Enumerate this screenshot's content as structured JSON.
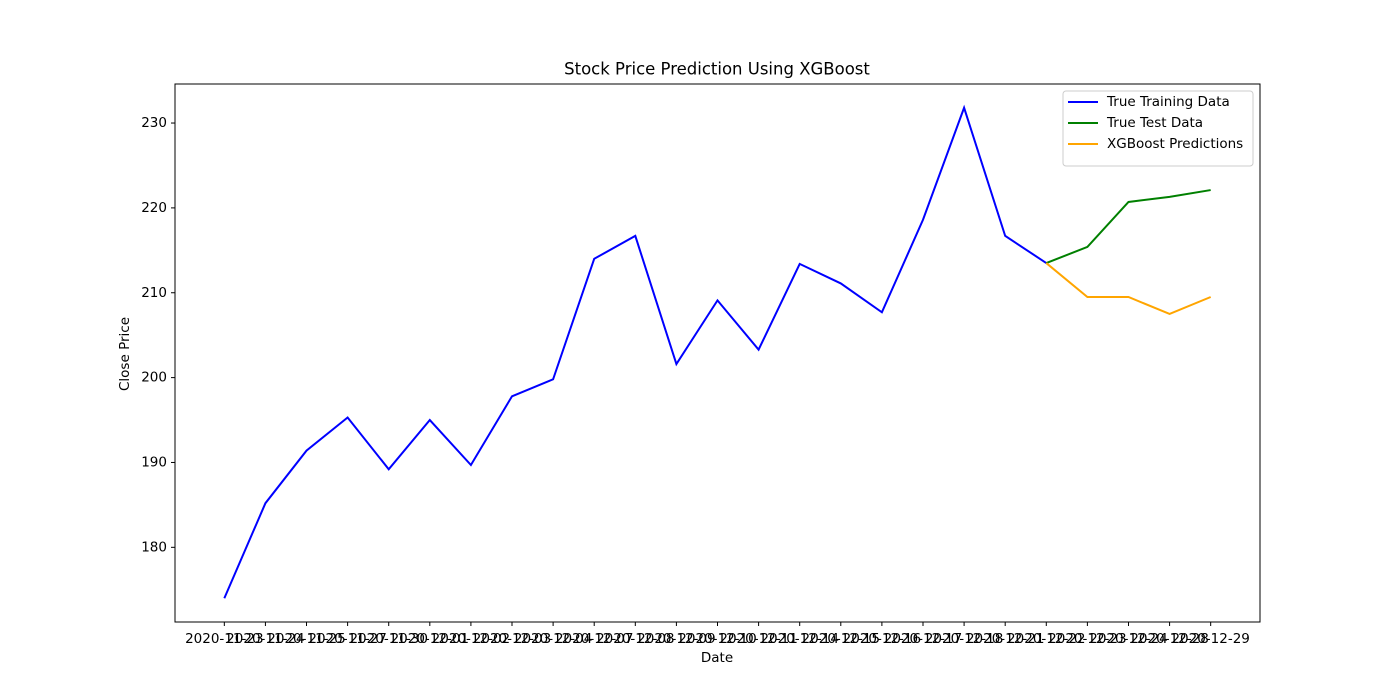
{
  "chart_data": {
    "type": "line",
    "title": "Stock Price Prediction Using XGBoost",
    "x_label": "Date",
    "y_label": "Close Price",
    "categories": [
      "2020-11-23",
      "2020-11-24",
      "2020-11-25",
      "2020-11-27",
      "2020-11-30",
      "2020-12-01",
      "2020-12-02",
      "2020-12-03",
      "2020-12-04",
      "2020-12-07",
      "2020-12-08",
      "2020-12-09",
      "2020-12-10",
      "2020-12-11",
      "2020-12-14",
      "2020-12-15",
      "2020-12-16",
      "2020-12-17",
      "2020-12-18",
      "2020-12-21",
      "2020-12-22",
      "2020-12-23",
      "2020-12-24",
      "2020-12-28",
      "2020-12-29"
    ],
    "series": [
      {
        "name": "True Training Data",
        "color": "#0000ff",
        "values": [
          174.0,
          185.2,
          191.4,
          195.3,
          189.2,
          195.0,
          189.7,
          197.8,
          199.8,
          214.0,
          216.7,
          201.6,
          209.1,
          203.3,
          213.4,
          211.1,
          207.7,
          218.6,
          231.8,
          216.7,
          213.5,
          null,
          null,
          null,
          null
        ]
      },
      {
        "name": "True Test Data",
        "color": "#008000",
        "values": [
          null,
          null,
          null,
          null,
          null,
          null,
          null,
          null,
          null,
          null,
          null,
          null,
          null,
          null,
          null,
          null,
          null,
          null,
          null,
          null,
          213.5,
          215.4,
          220.7,
          221.3,
          222.1
        ]
      },
      {
        "name": "XGBoost Predictions",
        "color": "#ffa500",
        "values": [
          null,
          null,
          null,
          null,
          null,
          null,
          null,
          null,
          null,
          null,
          null,
          null,
          null,
          null,
          null,
          null,
          null,
          null,
          null,
          null,
          213.5,
          209.5,
          209.5,
          207.5,
          209.5
        ]
      }
    ],
    "ylim": [
      171.2,
      234.6
    ],
    "yticks": [
      180,
      190,
      200,
      210,
      220,
      230
    ],
    "grid": false,
    "legend": "upper right"
  }
}
